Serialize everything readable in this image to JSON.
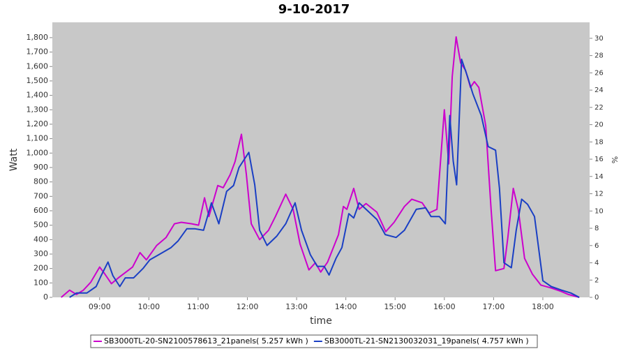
{
  "chart_data": {
    "type": "line",
    "title": "9-10-2017",
    "xlabel": "time",
    "ylabel": "Watt",
    "y2label": "%",
    "xlim": [
      8.04,
      18.95
    ],
    "xticks": [
      {
        "value": 9,
        "label": "09:00"
      },
      {
        "value": 10,
        "label": "10:00"
      },
      {
        "value": 11,
        "label": "11:00"
      },
      {
        "value": 12,
        "label": "12:00"
      },
      {
        "value": 13,
        "label": "13:00"
      },
      {
        "value": 14,
        "label": "14:00"
      },
      {
        "value": 15,
        "label": "15:00"
      },
      {
        "value": 16,
        "label": "16:00"
      },
      {
        "value": 17,
        "label": "17:00"
      },
      {
        "value": 18,
        "label": "18:00"
      }
    ],
    "ylim": [
      0,
      1906
    ],
    "yticks": [
      0,
      100,
      200,
      300,
      400,
      500,
      600,
      700,
      800,
      900,
      {
        "value": 1000,
        "label": "1,000"
      },
      {
        "value": 1100,
        "label": "1,100"
      },
      {
        "value": 1200,
        "label": "1,200"
      },
      {
        "value": 1300,
        "label": "1,300"
      },
      {
        "value": 1400,
        "label": "1,400"
      },
      {
        "value": 1500,
        "label": "1,500"
      },
      {
        "value": 1600,
        "label": "1,600"
      },
      {
        "value": 1700,
        "label": "1,700"
      },
      {
        "value": 1800,
        "label": "1,800"
      }
    ],
    "y2lim": [
      0,
      31.85
    ],
    "y2ticks": [
      0,
      2,
      4,
      6,
      8,
      10,
      12,
      14,
      16,
      18,
      20,
      22,
      24,
      26,
      28,
      30
    ],
    "series": [
      {
        "name": "SB3000TL-20-SN2100578613_21panels( 5.257 kWh )",
        "color": "#cc00cc",
        "x": [
          8.22,
          8.39,
          8.53,
          8.67,
          8.82,
          9.0,
          9.1,
          9.24,
          9.38,
          9.67,
          9.82,
          9.95,
          10.16,
          10.35,
          10.52,
          10.66,
          10.87,
          11.01,
          11.13,
          11.22,
          11.4,
          11.51,
          11.65,
          11.75,
          11.88,
          11.98,
          12.08,
          12.25,
          12.43,
          12.57,
          12.78,
          12.93,
          13.07,
          13.25,
          13.38,
          13.49,
          13.63,
          13.85,
          13.95,
          14.02,
          14.16,
          14.27,
          14.41,
          14.63,
          14.81,
          14.98,
          15.19,
          15.34,
          15.55,
          15.69,
          15.85,
          16.0,
          16.09,
          16.16,
          16.24,
          16.33,
          16.43,
          16.53,
          16.61,
          16.7,
          16.84,
          16.95,
          17.04,
          17.21,
          17.29,
          17.4,
          17.5,
          17.63,
          17.79,
          17.96,
          18.17,
          18.38,
          18.52,
          18.74
        ],
        "values": [
          0,
          50,
          20,
          50,
          105,
          210,
          165,
          95,
          135,
          210,
          310,
          260,
          360,
          415,
          510,
          520,
          510,
          500,
          690,
          560,
          775,
          760,
          850,
          940,
          1130,
          850,
          510,
          400,
          465,
          560,
          715,
          610,
          370,
          190,
          240,
          175,
          245,
          435,
          630,
          610,
          755,
          610,
          650,
          590,
          455,
          520,
          630,
          680,
          655,
          585,
          610,
          1300,
          925,
          1530,
          1805,
          1625,
          1575,
          1455,
          1495,
          1455,
          1190,
          610,
          185,
          200,
          415,
          755,
          610,
          270,
          160,
          85,
          65,
          40,
          20,
          0
        ]
      },
      {
        "name": "SB3000TL-21-SN2130032031_19panels( 4.757 kWh )",
        "color": "#1a3fc4",
        "x": [
          8.39,
          8.53,
          8.74,
          8.93,
          9.03,
          9.17,
          9.27,
          9.41,
          9.52,
          9.69,
          9.88,
          10.02,
          10.2,
          10.45,
          10.59,
          10.77,
          10.94,
          11.11,
          11.27,
          11.42,
          11.58,
          11.72,
          11.83,
          12.03,
          12.15,
          12.25,
          12.4,
          12.6,
          12.78,
          12.97,
          13.1,
          13.28,
          13.42,
          13.56,
          13.66,
          13.8,
          13.92,
          14.06,
          14.16,
          14.27,
          14.41,
          14.63,
          14.8,
          15.02,
          15.19,
          15.43,
          15.62,
          15.73,
          15.9,
          16.02,
          16.11,
          16.18,
          16.25,
          16.35,
          16.47,
          16.58,
          16.75,
          16.89,
          17.04,
          17.12,
          17.21,
          17.36,
          17.46,
          17.57,
          17.69,
          17.83,
          18.0,
          18.17,
          18.38,
          18.57,
          18.74
        ],
        "values": [
          0,
          30,
          30,
          75,
          150,
          245,
          150,
          75,
          135,
          135,
          200,
          260,
          295,
          345,
          390,
          475,
          475,
          465,
          655,
          510,
          735,
          775,
          900,
          1005,
          780,
          465,
          360,
          425,
          510,
          655,
          465,
          295,
          215,
          215,
          155,
          270,
          345,
          580,
          550,
          655,
          610,
          540,
          435,
          415,
          465,
          610,
          620,
          560,
          560,
          510,
          1260,
          945,
          780,
          1650,
          1530,
          1410,
          1260,
          1045,
          1020,
          755,
          240,
          205,
          465,
          680,
          645,
          560,
          115,
          75,
          50,
          30,
          0
        ]
      }
    ]
  }
}
